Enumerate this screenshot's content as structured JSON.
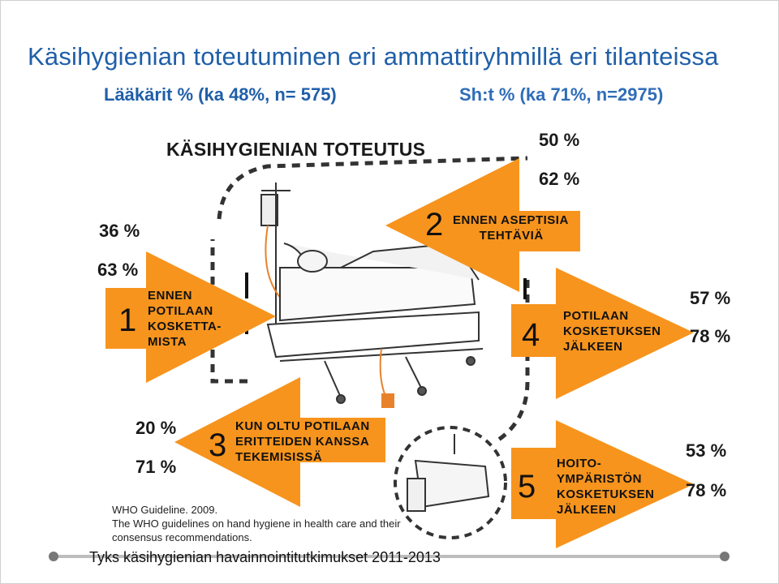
{
  "title": "Käsihygienian toteutuminen eri ammattiryhmillä eri tilanteissa",
  "subheads": {
    "laakarit": "Lääkärit % (ka 48%, n= 575)",
    "sh": "Sh:t % (ka 71%, n=2975)"
  },
  "figure": {
    "title": "KÄSIHYGIENIAN TOTEUTUS",
    "arrows": [
      {
        "number": "1",
        "label": "ENNEN\nPOTILAAN\nKOSKETTA-\nMISTA",
        "laakarit_pct": "36 %",
        "sh_pct": "63 %"
      },
      {
        "number": "2",
        "label": "ENNEN ASEPTISIA\n       TEHTÄVIÄ",
        "laakarit_pct": "50 %",
        "sh_pct": "62 %"
      },
      {
        "number": "3",
        "label": "KUN OLTU POTILAAN\nERITTEIDEN KANSSA\nTEKEMISISSÄ",
        "laakarit_pct": "20 %",
        "sh_pct": "71 %"
      },
      {
        "number": "4",
        "label": "POTILAAN\nKOSKETUKSEN\nJÄLKEEN",
        "laakarit_pct": "57 %",
        "sh_pct": "78 %"
      },
      {
        "number": "5",
        "label": "HOITO-\nYMPÄRISTÖN\nKOSKETUKSEN\nJÄLKEEN",
        "laakarit_pct": "53 %",
        "sh_pct": "78 %"
      }
    ],
    "reference": [
      "WHO Guideline. 2009.",
      "The WHO guidelines on hand hygiene in health care and their",
      "consensus recommendations."
    ]
  },
  "footer": "Tyks käsihygienian havainnointitutkimukset 2011-2013",
  "colors": {
    "arrow_orange": "#f7941d",
    "title_blue": "#1f5fa8",
    "iv_line": "#e8822a"
  }
}
